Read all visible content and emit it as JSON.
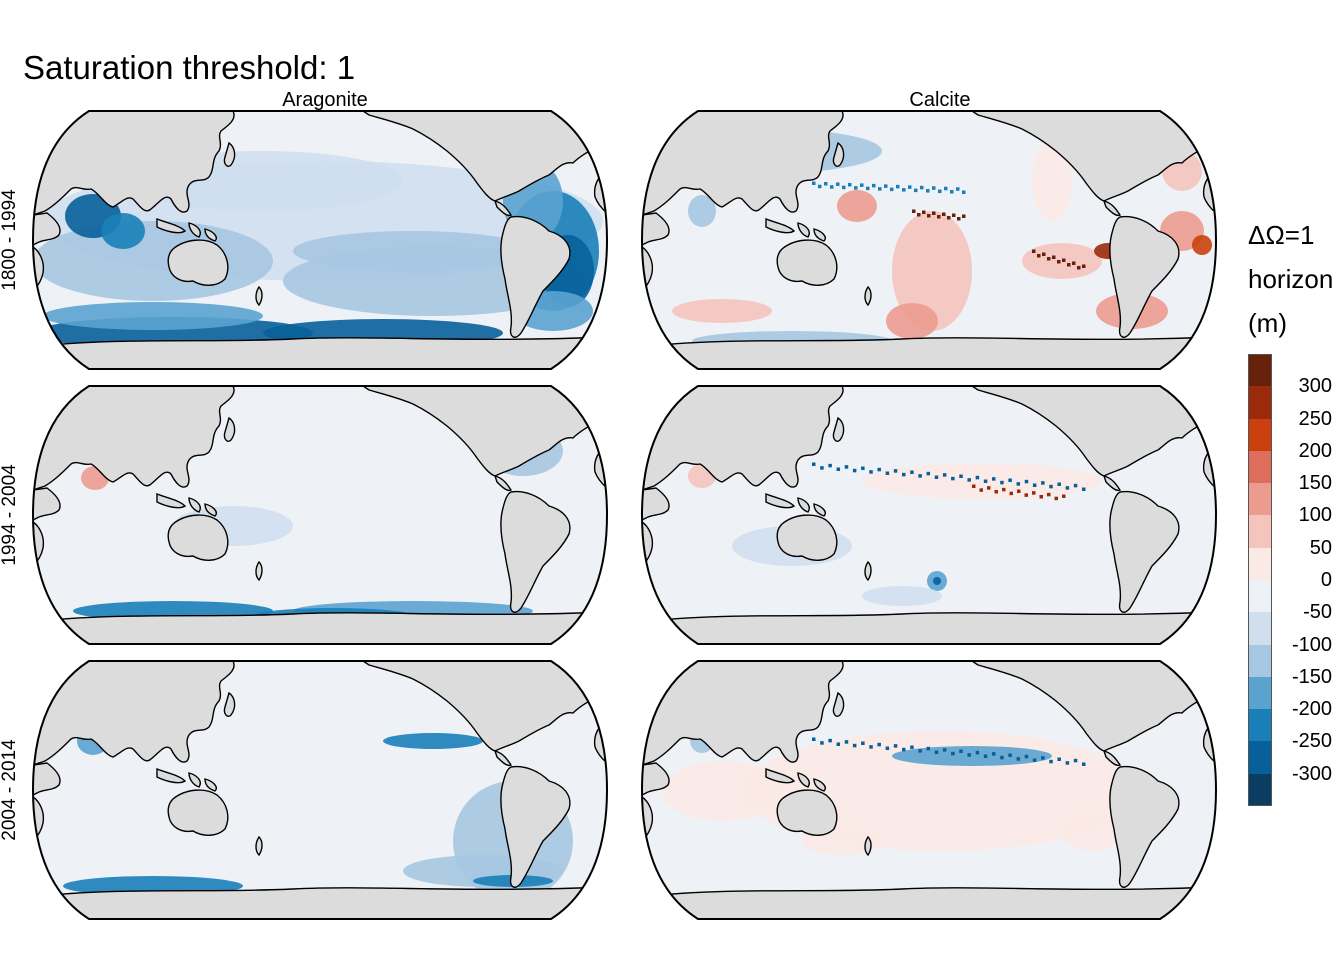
{
  "title": "Saturation threshold: 1",
  "columns": [
    "Aragonite",
    "Calcite"
  ],
  "rows": [
    "1800 - 1994",
    "1994 - 2004",
    "2004 - 2014"
  ],
  "legend": {
    "title_lines": [
      "ΔΩ=1",
      "horizon",
      "(m)"
    ],
    "unit": "m",
    "bins": [
      {
        "range": [
          300,
          350
        ],
        "color": "#67200a"
      },
      {
        "range": [
          250,
          300
        ],
        "color": "#9a2a0a"
      },
      {
        "range": [
          200,
          250
        ],
        "color": "#c9400e"
      },
      {
        "range": [
          150,
          200
        ],
        "color": "#df6d5c"
      },
      {
        "range": [
          100,
          150
        ],
        "color": "#ec9b8f"
      },
      {
        "range": [
          50,
          100
        ],
        "color": "#f5c4bc"
      },
      {
        "range": [
          0,
          50
        ],
        "color": "#fbe9e6"
      },
      {
        "range": [
          -50,
          0
        ],
        "color": "#eef2f7"
      },
      {
        "range": [
          -100,
          -50
        ],
        "color": "#cfdfee"
      },
      {
        "range": [
          -150,
          -100
        ],
        "color": "#a6c7e1"
      },
      {
        "range": [
          -200,
          -150
        ],
        "color": "#5aa3cf"
      },
      {
        "range": [
          -250,
          -200
        ],
        "color": "#1a7fb8"
      },
      {
        "range": [
          -300,
          -250
        ],
        "color": "#08609a"
      },
      {
        "range": [
          -350,
          -300
        ],
        "color": "#0b3d63"
      }
    ],
    "tick_labels": [
      "300",
      "250",
      "200",
      "150",
      "100",
      "50",
      "0",
      "-50",
      "-100",
      "-150",
      "-200",
      "-250",
      "-300"
    ]
  },
  "colors": {
    "land": "#dcdcdc",
    "ocean_near_zero": "#eef2f7",
    "coastline": "#000000"
  }
}
